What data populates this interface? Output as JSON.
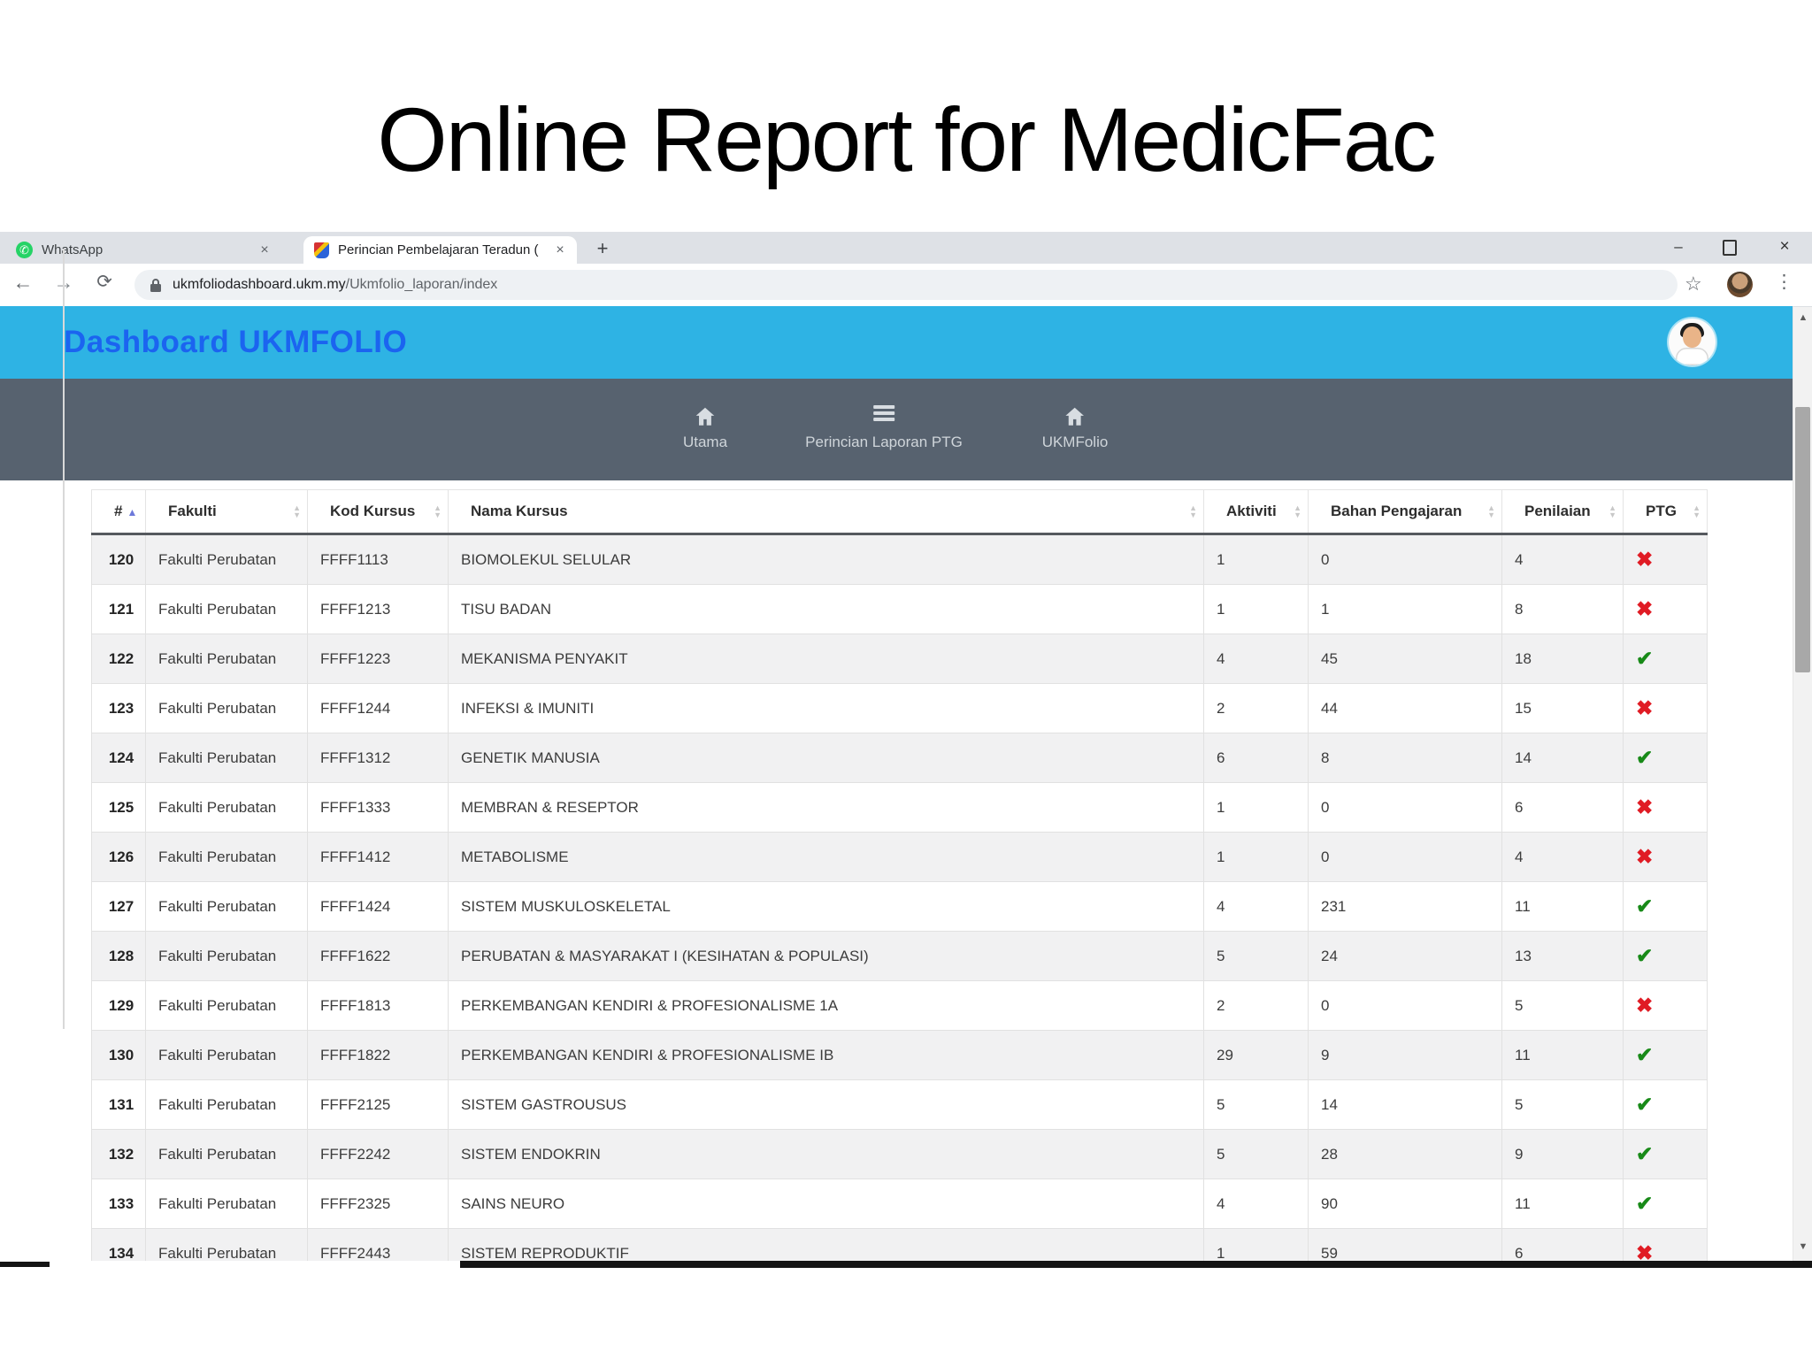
{
  "slide": {
    "title": "Online Report for MedicFac"
  },
  "browser": {
    "tabs": [
      {
        "label": "WhatsApp",
        "icon": "whatsapp-icon",
        "active": false
      },
      {
        "label": "Perincian Pembelajaran Teradun (",
        "icon": "ukm-crest-favicon",
        "active": true
      }
    ],
    "new_tab_label": "+",
    "window_controls": {
      "minimize": "–",
      "close": "×"
    },
    "address": {
      "host": "ukmfoliodashboard.ukm.my",
      "path": "/Ukmfolio_laporan/index"
    }
  },
  "header": {
    "title": "Dashboard UKMFOLIO"
  },
  "nav": {
    "items": [
      {
        "label": "Utama",
        "icon": "home-icon"
      },
      {
        "label": "Perincian Laporan PTG",
        "icon": "menu-icon"
      },
      {
        "label": "UKMFolio",
        "icon": "home-icon"
      }
    ]
  },
  "table": {
    "columns": [
      "#",
      "Fakulti",
      "Kod Kursus",
      "Nama Kursus",
      "Aktiviti",
      "Bahan Pengajaran",
      "Penilaian",
      "PTG"
    ],
    "sorted_column": "#",
    "rows": [
      {
        "num": "120",
        "fakulti": "Fakulti Perubatan",
        "kod": "FFFF1113",
        "nama": "BIOMOLEKUL SELULAR",
        "aktiviti": "1",
        "bahan": "0",
        "penilaian": "4",
        "ptg": "fail"
      },
      {
        "num": "121",
        "fakulti": "Fakulti Perubatan",
        "kod": "FFFF1213",
        "nama": "TISU BADAN",
        "aktiviti": "1",
        "bahan": "1",
        "penilaian": "8",
        "ptg": "fail"
      },
      {
        "num": "122",
        "fakulti": "Fakulti Perubatan",
        "kod": "FFFF1223",
        "nama": "MEKANISMA PENYAKIT",
        "aktiviti": "4",
        "bahan": "45",
        "penilaian": "18",
        "ptg": "pass"
      },
      {
        "num": "123",
        "fakulti": "Fakulti Perubatan",
        "kod": "FFFF1244",
        "nama": "INFEKSI & IMUNITI",
        "aktiviti": "2",
        "bahan": "44",
        "penilaian": "15",
        "ptg": "fail"
      },
      {
        "num": "124",
        "fakulti": "Fakulti Perubatan",
        "kod": "FFFF1312",
        "nama": "GENETIK MANUSIA",
        "aktiviti": "6",
        "bahan": "8",
        "penilaian": "14",
        "ptg": "pass"
      },
      {
        "num": "125",
        "fakulti": "Fakulti Perubatan",
        "kod": "FFFF1333",
        "nama": "MEMBRAN & RESEPTOR",
        "aktiviti": "1",
        "bahan": "0",
        "penilaian": "6",
        "ptg": "fail"
      },
      {
        "num": "126",
        "fakulti": "Fakulti Perubatan",
        "kod": "FFFF1412",
        "nama": "METABOLISME",
        "aktiviti": "1",
        "bahan": "0",
        "penilaian": "4",
        "ptg": "fail"
      },
      {
        "num": "127",
        "fakulti": "Fakulti Perubatan",
        "kod": "FFFF1424",
        "nama": "SISTEM MUSKULOSKELETAL",
        "aktiviti": "4",
        "bahan": "231",
        "penilaian": "11",
        "ptg": "pass"
      },
      {
        "num": "128",
        "fakulti": "Fakulti Perubatan",
        "kod": "FFFF1622",
        "nama": "PERUBATAN & MASYARAKAT I (KESIHATAN & POPULASI)",
        "aktiviti": "5",
        "bahan": "24",
        "penilaian": "13",
        "ptg": "pass"
      },
      {
        "num": "129",
        "fakulti": "Fakulti Perubatan",
        "kod": "FFFF1813",
        "nama": "PERKEMBANGAN KENDIRI & PROFESIONALISME 1A",
        "aktiviti": "2",
        "bahan": "0",
        "penilaian": "5",
        "ptg": "fail"
      },
      {
        "num": "130",
        "fakulti": "Fakulti Perubatan",
        "kod": "FFFF1822",
        "nama": "PERKEMBANGAN KENDIRI & PROFESIONALISME IB",
        "aktiviti": "29",
        "bahan": "9",
        "penilaian": "11",
        "ptg": "pass"
      },
      {
        "num": "131",
        "fakulti": "Fakulti Perubatan",
        "kod": "FFFF2125",
        "nama": "SISTEM GASTROUSUS",
        "aktiviti": "5",
        "bahan": "14",
        "penilaian": "5",
        "ptg": "pass"
      },
      {
        "num": "132",
        "fakulti": "Fakulti Perubatan",
        "kod": "FFFF2242",
        "nama": "SISTEM ENDOKRIN",
        "aktiviti": "5",
        "bahan": "28",
        "penilaian": "9",
        "ptg": "pass"
      },
      {
        "num": "133",
        "fakulti": "Fakulti Perubatan",
        "kod": "FFFF2325",
        "nama": "SAINS NEURO",
        "aktiviti": "4",
        "bahan": "90",
        "penilaian": "11",
        "ptg": "pass"
      },
      {
        "num": "134",
        "fakulti": "Fakulti Perubatan",
        "kod": "FFFF2443",
        "nama": "SISTEM REPRODUKTIF",
        "aktiviti": "1",
        "bahan": "59",
        "penilaian": "6",
        "ptg": "fail"
      }
    ],
    "marks": {
      "pass": "✔",
      "fail": "✖"
    }
  },
  "colors": {
    "accent_blue": "#1b64f0",
    "header_bg": "#2eb3e4",
    "nav_bg": "#57626f",
    "pass": "#188a18",
    "fail": "#e01b24"
  }
}
